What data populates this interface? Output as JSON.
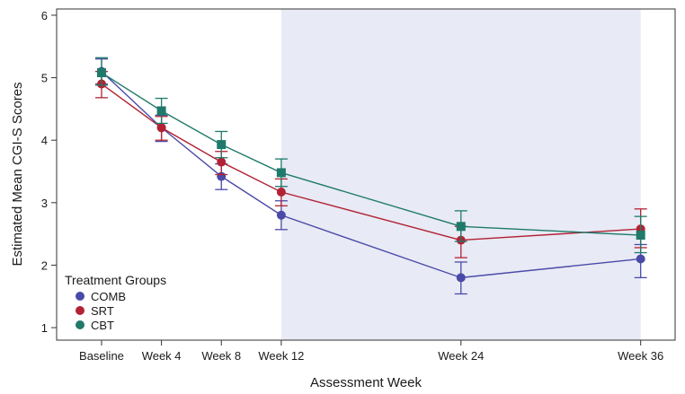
{
  "chart_data": {
    "type": "line",
    "title": "",
    "xlabel": "Assessment Week",
    "ylabel": "Estimated Mean CGI-S Scores",
    "x_labels": [
      "Baseline",
      "Week 4",
      "Week 8",
      "Week 12",
      "Week 24",
      "Week 36"
    ],
    "x": [
      0,
      4,
      8,
      12,
      24,
      36
    ],
    "xlim": [
      -3,
      38.3
    ],
    "ylim": [
      0.8,
      6.1
    ],
    "yticks": [
      1,
      2,
      3,
      4,
      5,
      6
    ],
    "shaded_region": {
      "x_start": 12,
      "x_end": 36,
      "color": "#e8eaf5"
    },
    "legend": {
      "title": "Treatment Groups",
      "position": "bottom-left"
    },
    "series": [
      {
        "name": "COMB",
        "color": "#4a4aa8",
        "marker": "circle",
        "values": [
          5.1,
          4.2,
          3.42,
          2.8,
          1.8,
          2.1
        ],
        "lower": [
          4.9,
          3.98,
          3.21,
          2.57,
          1.54,
          1.8
        ],
        "upper": [
          5.3,
          4.4,
          3.62,
          3.03,
          2.05,
          2.33
        ]
      },
      {
        "name": "SRT",
        "color": "#b22234",
        "marker": "circle",
        "values": [
          4.9,
          4.2,
          3.65,
          3.17,
          2.4,
          2.58
        ],
        "lower": [
          4.68,
          4.0,
          3.45,
          2.95,
          2.12,
          2.28
        ],
        "upper": [
          5.1,
          4.38,
          3.82,
          3.38,
          2.62,
          2.9
        ]
      },
      {
        "name": "CBT",
        "color": "#1f7a6b",
        "marker": "square",
        "values": [
          5.08,
          4.47,
          3.93,
          3.48,
          2.62,
          2.48
        ],
        "lower": [
          4.88,
          4.27,
          3.72,
          3.26,
          2.38,
          2.2
        ],
        "upper": [
          5.32,
          4.67,
          4.14,
          3.7,
          2.87,
          2.78
        ]
      }
    ]
  }
}
